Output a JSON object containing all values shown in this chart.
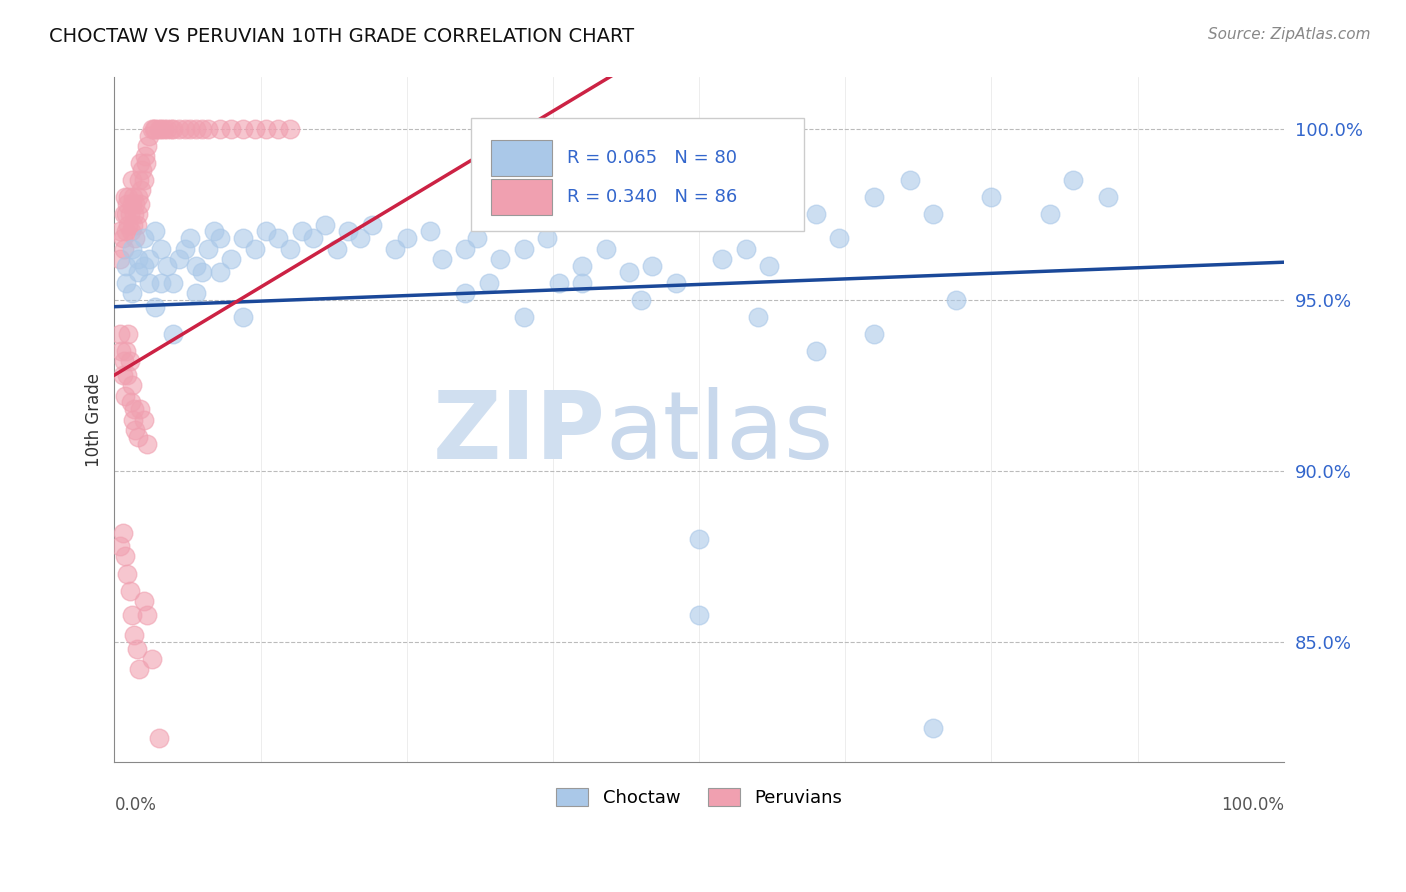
{
  "title": "CHOCTAW VS PERUVIAN 10TH GRADE CORRELATION CHART",
  "source": "Source: ZipAtlas.com",
  "ylabel": "10th Grade",
  "ytick_values": [
    0.85,
    0.9,
    0.95,
    1.0
  ],
  "ytick_labels": [
    "85.0%",
    "90.0%",
    "95.0%",
    "100.0%"
  ],
  "xlim": [
    0.0,
    1.0
  ],
  "ylim": [
    0.815,
    1.015
  ],
  "choctaw_R": "R = 0.065",
  "choctaw_N": "N = 80",
  "peruvian_R": "R = 0.340",
  "peruvian_N": "N = 86",
  "choctaw_color": "#aac8e8",
  "peruvian_color": "#f0a0b0",
  "choctaw_line_color": "#1a4899",
  "peruvian_line_color": "#cc2244",
  "watermark_zip": "ZIP",
  "watermark_atlas": "atlas",
  "choctaw_line_x0": 0.0,
  "choctaw_line_y0": 0.948,
  "choctaw_line_x1": 1.0,
  "choctaw_line_y1": 0.961,
  "peruvian_line_x0": 0.0,
  "peruvian_line_y0": 0.928,
  "peruvian_line_x1": 0.35,
  "peruvian_line_y1": 1.0,
  "choctaw_x": [
    0.01,
    0.01,
    0.015,
    0.015,
    0.02,
    0.02,
    0.025,
    0.025,
    0.03,
    0.03,
    0.035,
    0.04,
    0.04,
    0.045,
    0.05,
    0.055,
    0.06,
    0.065,
    0.07,
    0.075,
    0.08,
    0.085,
    0.09,
    0.1,
    0.11,
    0.12,
    0.13,
    0.14,
    0.15,
    0.16,
    0.17,
    0.18,
    0.19,
    0.2,
    0.21,
    0.22,
    0.24,
    0.25,
    0.27,
    0.28,
    0.3,
    0.31,
    0.32,
    0.33,
    0.35,
    0.37,
    0.38,
    0.4,
    0.42,
    0.44,
    0.46,
    0.48,
    0.5,
    0.52,
    0.54,
    0.56,
    0.6,
    0.62,
    0.65,
    0.68,
    0.7,
    0.75,
    0.8,
    0.82,
    0.85,
    0.3,
    0.35,
    0.4,
    0.45,
    0.5,
    0.55,
    0.6,
    0.65,
    0.7,
    0.72,
    0.035,
    0.05,
    0.07,
    0.09,
    0.11
  ],
  "choctaw_y": [
    0.955,
    0.96,
    0.952,
    0.965,
    0.958,
    0.962,
    0.96,
    0.968,
    0.955,
    0.962,
    0.97,
    0.955,
    0.965,
    0.96,
    0.955,
    0.962,
    0.965,
    0.968,
    0.96,
    0.958,
    0.965,
    0.97,
    0.968,
    0.962,
    0.968,
    0.965,
    0.97,
    0.968,
    0.965,
    0.97,
    0.968,
    0.972,
    0.965,
    0.97,
    0.968,
    0.972,
    0.965,
    0.968,
    0.97,
    0.962,
    0.965,
    0.968,
    0.955,
    0.962,
    0.965,
    0.968,
    0.955,
    0.96,
    0.965,
    0.958,
    0.96,
    0.955,
    0.88,
    0.962,
    0.965,
    0.96,
    0.975,
    0.968,
    0.98,
    0.985,
    0.975,
    0.98,
    0.975,
    0.985,
    0.98,
    0.952,
    0.945,
    0.955,
    0.95,
    0.858,
    0.945,
    0.935,
    0.94,
    0.825,
    0.95,
    0.948,
    0.94,
    0.952,
    0.958,
    0.945
  ],
  "peruvian_x": [
    0.005,
    0.005,
    0.007,
    0.008,
    0.008,
    0.009,
    0.01,
    0.01,
    0.011,
    0.012,
    0.012,
    0.013,
    0.014,
    0.015,
    0.015,
    0.016,
    0.016,
    0.017,
    0.018,
    0.018,
    0.019,
    0.02,
    0.02,
    0.021,
    0.022,
    0.022,
    0.023,
    0.024,
    0.025,
    0.026,
    0.027,
    0.028,
    0.03,
    0.032,
    0.034,
    0.035,
    0.038,
    0.04,
    0.042,
    0.045,
    0.048,
    0.05,
    0.055,
    0.06,
    0.065,
    0.07,
    0.075,
    0.08,
    0.09,
    0.1,
    0.11,
    0.12,
    0.13,
    0.14,
    0.15,
    0.005,
    0.006,
    0.007,
    0.008,
    0.009,
    0.01,
    0.011,
    0.012,
    0.013,
    0.014,
    0.015,
    0.016,
    0.017,
    0.018,
    0.02,
    0.022,
    0.025,
    0.028,
    0.005,
    0.007,
    0.009,
    0.011,
    0.013,
    0.015,
    0.017,
    0.019,
    0.021,
    0.025,
    0.028,
    0.032,
    0.038
  ],
  "peruvian_y": [
    0.97,
    0.962,
    0.968,
    0.975,
    0.965,
    0.98,
    0.97,
    0.975,
    0.978,
    0.972,
    0.98,
    0.975,
    0.97,
    0.978,
    0.985,
    0.972,
    0.98,
    0.975,
    0.968,
    0.978,
    0.972,
    0.98,
    0.975,
    0.985,
    0.978,
    0.99,
    0.982,
    0.988,
    0.985,
    0.992,
    0.99,
    0.995,
    0.998,
    1.0,
    1.0,
    1.0,
    1.0,
    1.0,
    1.0,
    1.0,
    1.0,
    1.0,
    1.0,
    1.0,
    1.0,
    1.0,
    1.0,
    1.0,
    1.0,
    1.0,
    1.0,
    1.0,
    1.0,
    1.0,
    1.0,
    0.94,
    0.935,
    0.928,
    0.932,
    0.922,
    0.935,
    0.928,
    0.94,
    0.932,
    0.92,
    0.925,
    0.915,
    0.918,
    0.912,
    0.91,
    0.918,
    0.915,
    0.908,
    0.878,
    0.882,
    0.875,
    0.87,
    0.865,
    0.858,
    0.852,
    0.848,
    0.842,
    0.862,
    0.858,
    0.845,
    0.822
  ]
}
